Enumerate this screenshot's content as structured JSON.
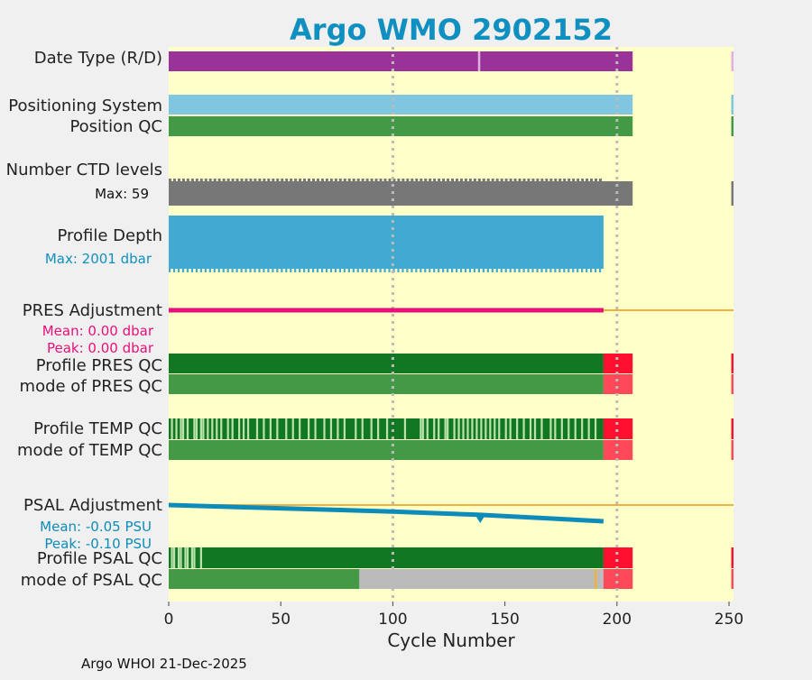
{
  "chart_data": {
    "type": "timeline",
    "title": "Argo WMO 2902152",
    "xlabel": "Cycle Number",
    "xlim": [
      0,
      252
    ],
    "xticks": [
      0,
      50,
      100,
      150,
      200,
      250
    ],
    "vlines": [
      100,
      200
    ],
    "footer": "Argo WHOI 21-Dec-2025",
    "colors": {
      "background": "#ffffc8",
      "title": "#1090c0",
      "datetype": "#993399",
      "possys": "#80c6e0",
      "qc_good": "#449944",
      "qc_dark": "#117722",
      "qc_light": "#bbe2aa",
      "qc_bad": "#ff1030",
      "qc_bad_light": "#ff4858",
      "ctd": "#777777",
      "depth": "#42aad0",
      "pres_adj": "#e8107a",
      "psal_adj": "#0d8cba",
      "zero_line": "#f0b040",
      "grey": "#bbbbbb"
    },
    "rows": {
      "date_type": {
        "label": "Date Type (R/D)"
      },
      "pos_system": {
        "label": "Positioning System"
      },
      "pos_qc": {
        "label": "Position QC"
      },
      "ctd_levels": {
        "label": "Number CTD levels",
        "max_label": "Max: 59"
      },
      "profile_depth": {
        "label": "Profile Depth",
        "max_label": "Max: 2001 dbar"
      },
      "pres_adjustment": {
        "label": "PRES Adjustment",
        "mean_label": "Mean: 0.00 dbar",
        "peak_label": "Peak: 0.00 dbar"
      },
      "pres_qc": {
        "label": "Profile PRES QC"
      },
      "pres_mode": {
        "label": "mode of PRES QC"
      },
      "temp_qc": {
        "label": "Profile TEMP QC"
      },
      "temp_mode": {
        "label": "mode of TEMP QC"
      },
      "psal_adjustment": {
        "label": "PSAL Adjustment",
        "mean_label": "Mean: -0.05 PSU",
        "peak_label": "Peak: -0.10 PSU"
      },
      "psal_qc": {
        "label": "Profile PSAL QC"
      },
      "psal_mode": {
        "label": "mode of PSAL QC"
      }
    },
    "series": {
      "date_type": [
        {
          "start": 0,
          "end": 207,
          "color": "datetype"
        },
        {
          "start": 138,
          "end": 139,
          "color": "#e0b0e0"
        },
        {
          "start": 251,
          "end": 252,
          "color": "#e0b0e0"
        }
      ],
      "pos_system": [
        {
          "start": 0,
          "end": 207,
          "color": "possys"
        },
        {
          "start": 251,
          "end": 252,
          "color": "possys"
        }
      ],
      "pos_qc": [
        {
          "start": 0,
          "end": 207,
          "color": "qc_good"
        },
        {
          "start": 251,
          "end": 252,
          "color": "qc_good"
        }
      ],
      "ctd_levels": [
        {
          "start": 0,
          "end": 207,
          "color": "ctd"
        },
        {
          "start": 251,
          "end": 252,
          "color": "ctd"
        }
      ],
      "profile_depth": [
        {
          "start": 0,
          "end": 194,
          "color": "depth"
        }
      ],
      "pres_qc": [
        {
          "start": 0,
          "end": 194,
          "color": "qc_dark"
        },
        {
          "start": 194,
          "end": 207,
          "color": "qc_bad"
        },
        {
          "start": 251,
          "end": 252,
          "color": "qc_bad"
        }
      ],
      "pres_mode": [
        {
          "start": 0,
          "end": 194,
          "color": "qc_good"
        },
        {
          "start": 194,
          "end": 207,
          "color": "qc_bad_light"
        },
        {
          "start": 251,
          "end": 252,
          "color": "qc_bad_light"
        }
      ],
      "temp_qc_base": [
        {
          "start": 0,
          "end": 194,
          "color": "qc_dark"
        },
        {
          "start": 194,
          "end": 207,
          "color": "qc_bad"
        },
        {
          "start": 251,
          "end": 252,
          "color": "qc_bad"
        }
      ],
      "temp_qc_light_cycles": [
        1,
        3,
        5,
        6,
        8,
        11,
        12,
        14,
        15,
        17,
        19,
        21,
        23,
        26,
        28,
        31,
        33,
        35,
        39,
        42,
        45,
        48,
        52,
        55,
        58,
        62,
        65,
        69,
        72,
        75,
        78,
        83,
        86,
        90,
        93,
        97,
        105,
        112,
        113,
        115,
        118,
        120,
        123,
        124,
        127,
        129,
        131,
        133,
        135,
        137,
        139,
        141,
        143,
        145,
        147,
        150,
        152,
        155,
        158,
        161,
        163,
        166,
        170,
        172,
        175,
        178,
        181,
        184,
        187,
        190
      ],
      "temp_mode": [
        {
          "start": 0,
          "end": 194,
          "color": "qc_good"
        },
        {
          "start": 194,
          "end": 207,
          "color": "qc_bad_light"
        },
        {
          "start": 251,
          "end": 252,
          "color": "qc_bad_light"
        }
      ],
      "psal_qc_base": [
        {
          "start": 0,
          "end": 194,
          "color": "qc_dark"
        },
        {
          "start": 194,
          "end": 207,
          "color": "qc_bad"
        },
        {
          "start": 251,
          "end": 252,
          "color": "qc_bad"
        }
      ],
      "psal_qc_light_cycles": [
        1,
        2,
        4,
        5,
        7,
        8,
        10,
        11,
        14
      ],
      "psal_mode": [
        {
          "start": 0,
          "end": 194,
          "color": "qc_good"
        },
        {
          "start": 85,
          "end": 207,
          "color": "grey"
        },
        {
          "start": 194,
          "end": 207,
          "color": "qc_bad_light"
        },
        {
          "start": 190,
          "end": 191,
          "color": "zero_line"
        },
        {
          "start": 251,
          "end": 252,
          "color": "qc_bad_light"
        }
      ],
      "pres_adjustment": {
        "start": 0,
        "end": 194,
        "value": 0.0
      },
      "psal_adjustment": {
        "points": [
          [
            0,
            0.0
          ],
          [
            50,
            -0.02
          ],
          [
            100,
            -0.04
          ],
          [
            138,
            -0.06
          ],
          [
            194,
            -0.1
          ]
        ],
        "dip_cycle": 139
      }
    }
  }
}
